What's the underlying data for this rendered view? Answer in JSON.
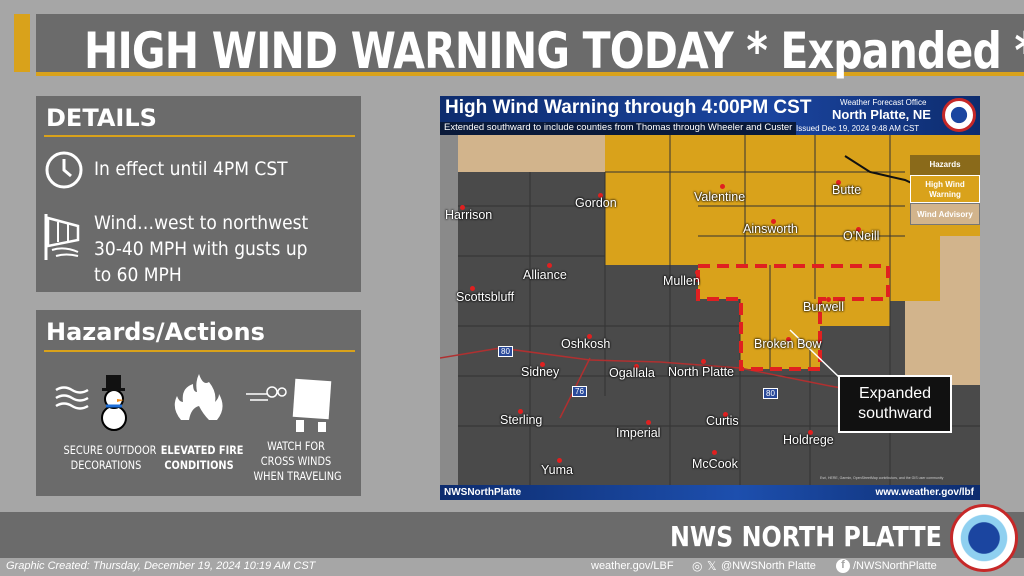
{
  "title": "HIGH WIND WARNING TODAY * Expanded *",
  "details": {
    "heading": "DETAILS",
    "effect": "In effect until 4PM CST",
    "wind_lines": [
      "Wind…west to northwest",
      "30-40 MPH with gusts up",
      "to 60 MPH"
    ],
    "icons": [
      "clock-icon",
      "windsock-icon"
    ]
  },
  "hazards": {
    "heading": "Hazards/Actions",
    "items": [
      {
        "icon": "snowman-wind-icon",
        "lines": [
          "SECURE OUTDOOR",
          "DECORATIONS"
        ]
      },
      {
        "icon": "fire-icon",
        "lines": [
          "ELEVATED FIRE",
          "CONDITIONS"
        ]
      },
      {
        "icon": "truck-wind-icon",
        "lines": [
          "WATCH FOR",
          "CROSS WINDS",
          "WHEN TRAVELING"
        ]
      }
    ]
  },
  "map": {
    "title": "High Wind Warning through 4:00PM CST",
    "subtitle": "Extended southward to include counties from Thomas through Wheeler and Custer",
    "office_label": "Weather Forecast Office",
    "office": "North Platte, NE",
    "issued": "Issued Dec 19, 2024 9:48 AM CST",
    "legend": {
      "heading": "Hazards",
      "items": [
        {
          "label": "High Wind Warning",
          "color": "#d9a21b"
        },
        {
          "label": "Wind Advisory",
          "color": "#d2b48c"
        }
      ]
    },
    "cities": [
      "Harrison",
      "Gordon",
      "Valentine",
      "Butte",
      "Ainsworth",
      "O'Neill",
      "Alliance",
      "Mullen",
      "Scottsbluff",
      "Burwell",
      "Oshkosh",
      "Broken Bow",
      "Sidney",
      "Ogallala",
      "North Platte",
      "Sterling",
      "Imperial",
      "Curtis",
      "Holdrege",
      "McCook",
      "Yuma"
    ],
    "interstates": [
      "80",
      "76",
      "80"
    ],
    "callout": [
      "Expanded",
      "southward"
    ],
    "attribution": "Esri, HERE, Garmin, OpenStreetMap contributors, and the GIS user community",
    "footer_left": "NWSNorthPlatte",
    "footer_right": "www.weather.gov/lbf"
  },
  "footer": {
    "office": "NWS NORTH PLATTE",
    "created": "Graphic Created:  Thursday, December 19, 2024  10:19 AM CST",
    "website": "weather.gov/LBF",
    "twitter": "@NWSNorth Platte",
    "facebook": "/NWSNorthPlatte"
  },
  "colors": {
    "accent": "#d9a21b",
    "panel": "#6b6b6b",
    "warning": "#d9a21b",
    "advisory": "#d2b48c",
    "expansion_outline": "#e02020"
  }
}
